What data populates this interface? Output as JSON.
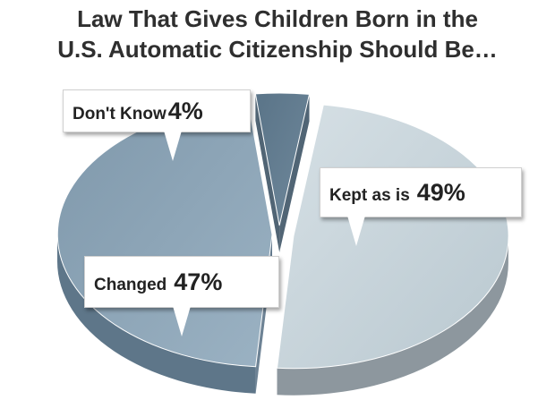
{
  "title_lines": [
    "Law That Gives Children Born in the",
    "U.S. Automatic Citizenship Should Be…"
  ],
  "chart_data": {
    "type": "pie",
    "title": "Law That Gives Children Born in the U.S. Automatic Citizenship Should Be…",
    "slices": [
      {
        "label": "Kept as is",
        "value": 49,
        "display": "49%"
      },
      {
        "label": "Changed",
        "value": 47,
        "display": "47%"
      },
      {
        "label": "Don't Know",
        "value": 4,
        "display": "4%"
      }
    ],
    "colors": {
      "Kept as is": "#c4d1d8",
      "Changed": "#8aa3b6",
      "Don't Know": "#5f7a8e"
    },
    "exploded": true,
    "three_d": true,
    "legend": "callouts"
  }
}
